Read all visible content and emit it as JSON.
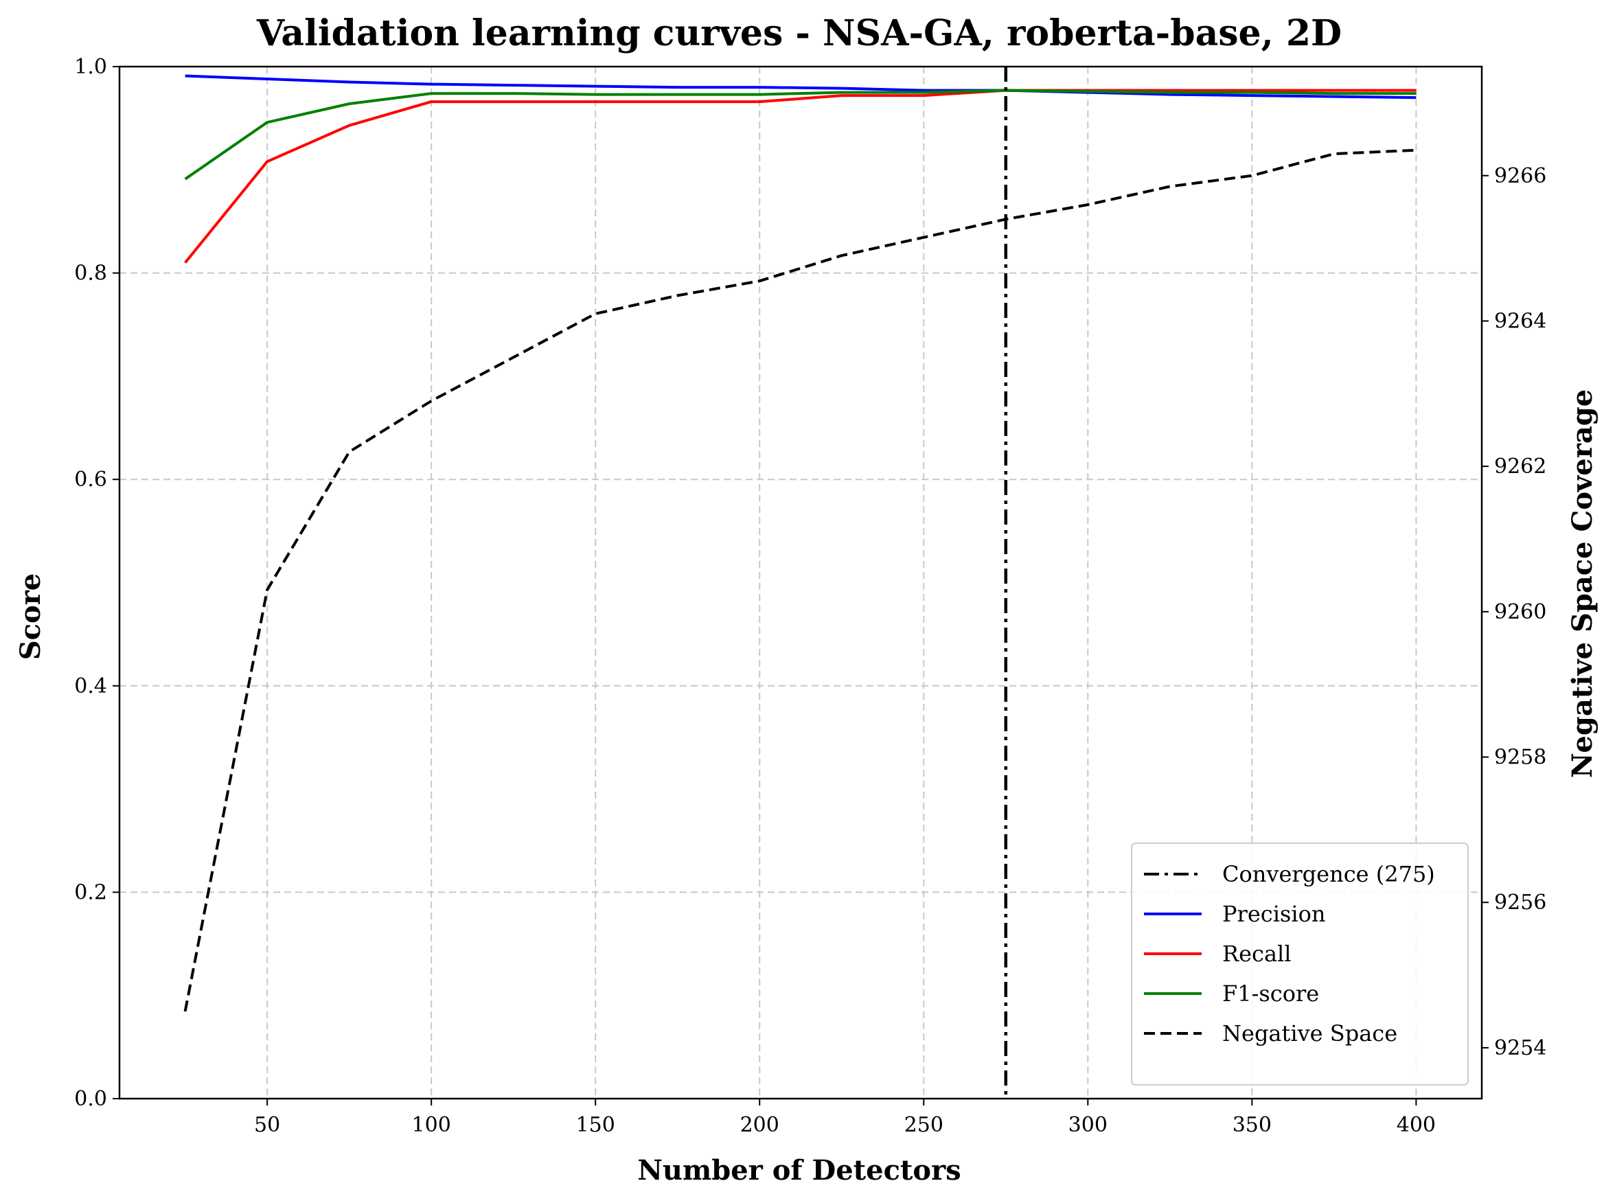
{
  "chart_data": {
    "type": "line",
    "title": "Validation learning curves - NSA-GA, roberta-base, 2D",
    "xlabel": "Number of Detectors",
    "ylabel": "Score",
    "y2label": "Negative Space Coverage",
    "xlim": [
      5,
      420
    ],
    "ylim": [
      0.0,
      1.0
    ],
    "y2lim": [
      9253.3,
      9267.5
    ],
    "x_ticks": [
      50,
      100,
      150,
      200,
      250,
      300,
      350,
      400
    ],
    "y_ticks": [
      0.0,
      0.2,
      0.4,
      0.6,
      0.8,
      1.0
    ],
    "y2_ticks": [
      9254,
      9256,
      9258,
      9260,
      9262,
      9264,
      9266
    ],
    "grid": true,
    "legend_position": "bottom-right",
    "x": [
      25,
      50,
      75,
      100,
      125,
      150,
      175,
      200,
      225,
      250,
      275,
      300,
      325,
      350,
      375,
      400
    ],
    "series": [
      {
        "name": "Precision",
        "color": "#0000ff",
        "style": "solid",
        "axis": "left",
        "values": [
          0.991,
          0.988,
          0.985,
          0.983,
          0.982,
          0.981,
          0.98,
          0.98,
          0.979,
          0.977,
          0.977,
          0.975,
          0.973,
          0.972,
          0.971,
          0.97
        ]
      },
      {
        "name": "Recall",
        "color": "#ff0000",
        "style": "solid",
        "axis": "left",
        "values": [
          0.81,
          0.908,
          0.943,
          0.966,
          0.966,
          0.966,
          0.966,
          0.966,
          0.972,
          0.972,
          0.977,
          0.977,
          0.977,
          0.977,
          0.977,
          0.977
        ]
      },
      {
        "name": "F1-score",
        "color": "#008000",
        "style": "solid",
        "axis": "left",
        "values": [
          0.891,
          0.946,
          0.964,
          0.974,
          0.974,
          0.973,
          0.973,
          0.973,
          0.975,
          0.975,
          0.977,
          0.976,
          0.975,
          0.975,
          0.974,
          0.974
        ]
      },
      {
        "name": "Negative Space",
        "color": "#000000",
        "style": "dashed",
        "axis": "right",
        "values": [
          9254.5,
          9260.3,
          9262.2,
          9262.9,
          9263.5,
          9264.1,
          9264.35,
          9264.55,
          9264.9,
          9265.15,
          9265.4,
          9265.6,
          9265.85,
          9266.0,
          9266.3,
          9266.35
        ]
      }
    ],
    "convergence": {
      "name": "Convergence (275)",
      "x": 275,
      "color": "#000000",
      "style": "dashdot"
    },
    "legend_order": [
      "Convergence (275)",
      "Precision",
      "Recall",
      "F1-score",
      "Negative Space"
    ]
  }
}
